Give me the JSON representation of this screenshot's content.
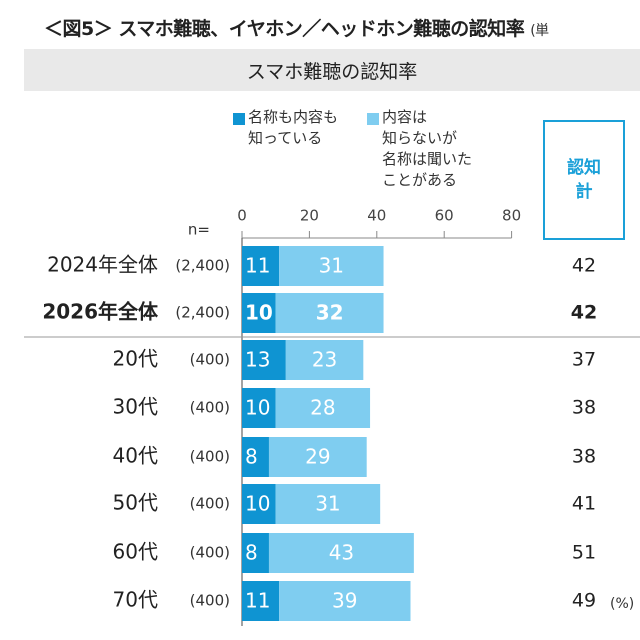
{
  "figure": {
    "title": "＜図5＞ スマホ難聴、イヤホン／ヘッドホン難聴の認知率",
    "unit_prefix": "(単",
    "subtitle": "スマホ難聴の認知率",
    "n_label": "n=",
    "total_header": "認知\n計",
    "percent_note": "(%)"
  },
  "legend": [
    {
      "label": "名称も内容も\n知っている",
      "color": "#0f94d2"
    },
    {
      "label": "内容は\n知らないが\n名称は聞いた\nことがある",
      "color": "#7fcdf0"
    }
  ],
  "chart_data": {
    "type": "bar",
    "orientation": "horizontal",
    "stacked": true,
    "title": "スマホ難聴の認知率",
    "xlim": [
      0,
      80
    ],
    "xticks": [
      0,
      20,
      40,
      60,
      80
    ],
    "categories": [
      "2024年全体",
      "2026年全体",
      "20代",
      "30代",
      "40代",
      "50代",
      "60代",
      "70代"
    ],
    "sample_sizes": [
      "(2,400)",
      "(2,400)",
      "(400)",
      "(400)",
      "(400)",
      "(400)",
      "(400)",
      "(400)"
    ],
    "highlighted": [
      false,
      true,
      false,
      false,
      false,
      false,
      false,
      false
    ],
    "series": [
      {
        "name": "名称も内容も知っている",
        "color": "#0f94d2",
        "values": [
          11,
          10,
          13,
          10,
          8,
          10,
          8,
          11
        ]
      },
      {
        "name": "内容は知らないが名称は聞いたことがある",
        "color": "#7fcdf0",
        "values": [
          31,
          32,
          23,
          28,
          29,
          31,
          43,
          39
        ]
      }
    ],
    "totals": [
      42,
      42,
      37,
      38,
      38,
      41,
      51,
      49
    ]
  }
}
